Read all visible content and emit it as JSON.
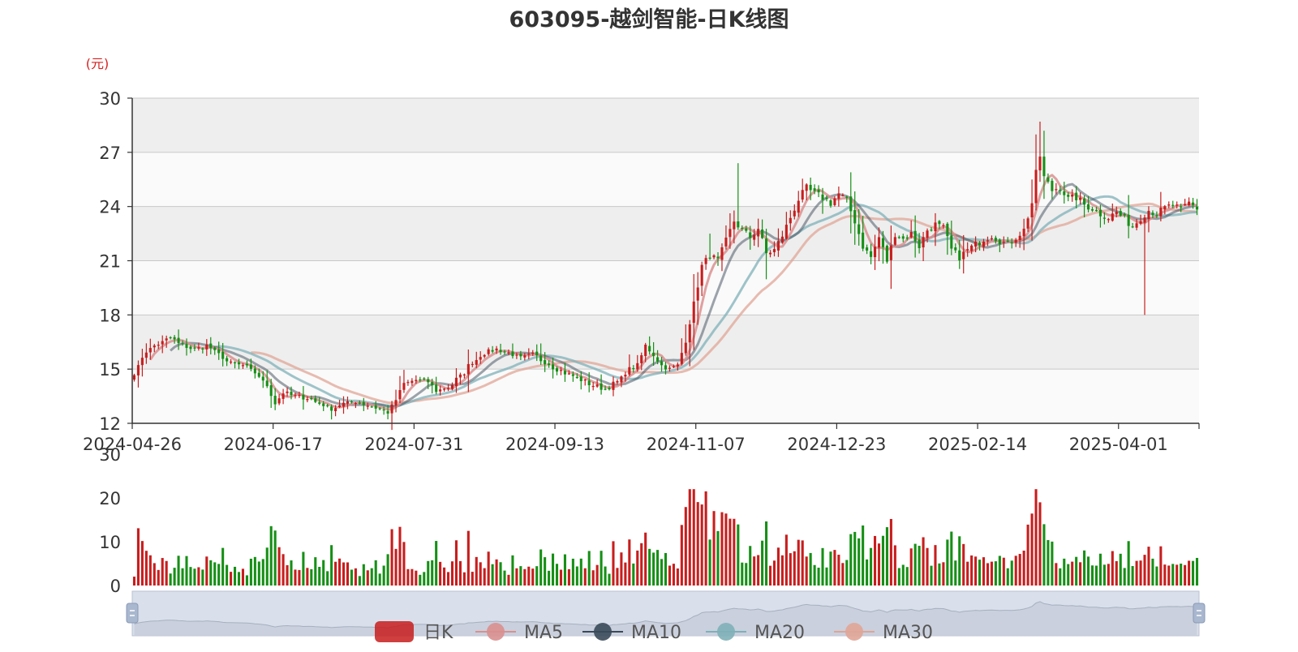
{
  "chart_data": {
    "type": "candlestick",
    "title": "603095-越剑智能-日K线图",
    "price_unit": "(元)",
    "price_axis": {
      "ylim": [
        12,
        30
      ],
      "ticks": [
        12,
        15,
        18,
        21,
        24,
        27,
        30
      ]
    },
    "volume_axis": {
      "ylim": [
        0,
        30
      ],
      "ticks": [
        0,
        10,
        20,
        30
      ]
    },
    "x_tick_labels": [
      "2024-04-26",
      "2024-06-17",
      "2024-07-31",
      "2024-09-13",
      "2024-11-07",
      "2024-12-23",
      "2025-02-14",
      "2025-04-01"
    ],
    "x_tick_positions": [
      0,
      35,
      70,
      105,
      140,
      175,
      210,
      245
    ],
    "num_candles": 265,
    "grid": true,
    "legend": {
      "position": "bottom",
      "items": [
        {
          "name": "日K",
          "color": "#c81d1d"
        },
        {
          "name": "MA5",
          "color": "#d98f8f"
        },
        {
          "name": "MA10",
          "color": "#3b4a5a"
        },
        {
          "name": "MA20",
          "color": "#7fb0b8"
        },
        {
          "name": "MA30",
          "color": "#e0a597"
        }
      ]
    },
    "colors": {
      "up": "#c81d1d",
      "down": "#168f16"
    },
    "close_anchors": [
      [
        0,
        14.8
      ],
      [
        3,
        16.0
      ],
      [
        6,
        16.4
      ],
      [
        9,
        16.7
      ],
      [
        12,
        16.3
      ],
      [
        15,
        16.1
      ],
      [
        18,
        16.3
      ],
      [
        21,
        15.8
      ],
      [
        24,
        15.3
      ],
      [
        27,
        15.2
      ],
      [
        30,
        14.8
      ],
      [
        33,
        14.1
      ],
      [
        35,
        13.1
      ],
      [
        37,
        13.7
      ],
      [
        40,
        13.5
      ],
      [
        43,
        13.4
      ],
      [
        46,
        13.1
      ],
      [
        49,
        12.8
      ],
      [
        52,
        13.1
      ],
      [
        55,
        13.2
      ],
      [
        58,
        13.0
      ],
      [
        61,
        12.8
      ],
      [
        63,
        12.6
      ],
      [
        65,
        13.3
      ],
      [
        67,
        14.2
      ],
      [
        70,
        14.4
      ],
      [
        73,
        14.3
      ],
      [
        75,
        13.8
      ],
      [
        78,
        14.0
      ],
      [
        81,
        14.6
      ],
      [
        84,
        15.4
      ],
      [
        87,
        15.9
      ],
      [
        90,
        16.1
      ],
      [
        93,
        15.9
      ],
      [
        96,
        15.6
      ],
      [
        99,
        15.8
      ],
      [
        102,
        15.4
      ],
      [
        105,
        15.0
      ],
      [
        108,
        14.7
      ],
      [
        111,
        14.4
      ],
      [
        114,
        14.1
      ],
      [
        117,
        13.9
      ],
      [
        120,
        14.3
      ],
      [
        123,
        15.0
      ],
      [
        125,
        15.2
      ],
      [
        127,
        16.3
      ],
      [
        129,
        15.8
      ],
      [
        131,
        15.2
      ],
      [
        133,
        15.0
      ],
      [
        135,
        15.2
      ],
      [
        137,
        16.6
      ],
      [
        139,
        18.6
      ],
      [
        141,
        20.7
      ],
      [
        143,
        21.3
      ],
      [
        145,
        21.0
      ],
      [
        147,
        22.1
      ],
      [
        149,
        23.2
      ],
      [
        151,
        22.7
      ],
      [
        153,
        22.3
      ],
      [
        155,
        22.8
      ],
      [
        157,
        21.4
      ],
      [
        159,
        21.6
      ],
      [
        161,
        22.4
      ],
      [
        163,
        23.4
      ],
      [
        165,
        24.4
      ],
      [
        167,
        25.0
      ],
      [
        169,
        24.7
      ],
      [
        171,
        24.5
      ],
      [
        173,
        24.2
      ],
      [
        175,
        24.7
      ],
      [
        177,
        24.3
      ],
      [
        179,
        23.2
      ],
      [
        181,
        21.8
      ],
      [
        183,
        21.2
      ],
      [
        185,
        22.3
      ],
      [
        187,
        21.0
      ],
      [
        189,
        22.5
      ],
      [
        191,
        22.2
      ],
      [
        193,
        22.5
      ],
      [
        195,
        21.8
      ],
      [
        197,
        22.7
      ],
      [
        199,
        23.0
      ],
      [
        201,
        22.8
      ],
      [
        203,
        21.6
      ],
      [
        205,
        21.2
      ],
      [
        207,
        21.6
      ],
      [
        209,
        21.9
      ],
      [
        211,
        22.2
      ],
      [
        213,
        22.4
      ],
      [
        215,
        22.1
      ],
      [
        217,
        21.9
      ],
      [
        219,
        22.3
      ],
      [
        221,
        22.7
      ],
      [
        223,
        24.2
      ],
      [
        224,
        25.8
      ],
      [
        225,
        26.8
      ],
      [
        226,
        25.6
      ],
      [
        228,
        24.9
      ],
      [
        230,
        25.1
      ],
      [
        232,
        24.4
      ],
      [
        234,
        24.5
      ],
      [
        236,
        24.1
      ],
      [
        238,
        23.9
      ],
      [
        240,
        23.6
      ],
      [
        242,
        23.4
      ],
      [
        244,
        23.7
      ],
      [
        246,
        23.3
      ],
      [
        248,
        22.9
      ],
      [
        250,
        23.4
      ],
      [
        252,
        23.8
      ],
      [
        254,
        23.6
      ],
      [
        256,
        23.9
      ],
      [
        258,
        24.1
      ],
      [
        260,
        23.8
      ],
      [
        262,
        24.2
      ],
      [
        264,
        23.9
      ]
    ]
  }
}
